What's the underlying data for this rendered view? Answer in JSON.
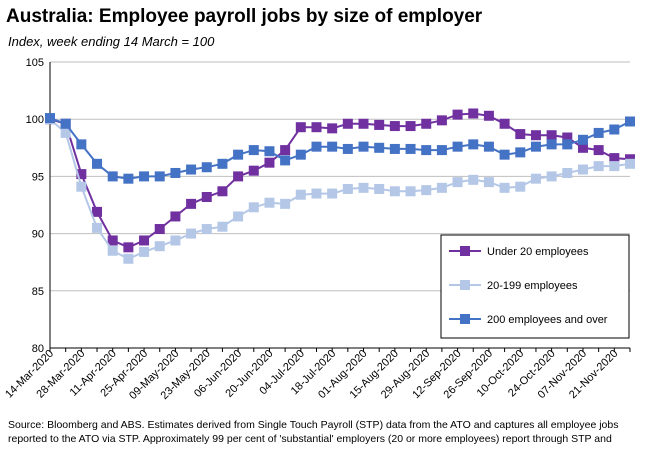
{
  "title": "Australia:  Employee payroll jobs by size of employer",
  "subtitle": "Index, week ending 14 March = 100",
  "source": "Source: Bloomberg and ABS.  Estimates derived from Single Touch Payroll (STP) data from the ATO and captures all employee jobs reported to the ATO via STP.  Approximately 99 per cent of 'substantial' employers (20 or more employees) report through STP and",
  "chart_data": {
    "type": "line",
    "title": "Australia:  Employee payroll jobs by size of employer",
    "subtitle": "Index, week ending 14 March = 100",
    "ylim": [
      80,
      105
    ],
    "yticks": [
      80,
      85,
      90,
      95,
      100,
      105
    ],
    "grid": "horizontal",
    "legend_position": "lower-right",
    "x": [
      "14-Mar-2020",
      "21-Mar-2020",
      "28-Mar-2020",
      "04-Apr-2020",
      "11-Apr-2020",
      "18-Apr-2020",
      "25-Apr-2020",
      "02-May-2020",
      "09-May-2020",
      "16-May-2020",
      "23-May-2020",
      "30-May-2020",
      "06-Jun-2020",
      "13-Jun-2020",
      "20-Jun-2020",
      "27-Jun-2020",
      "04-Jul-2020",
      "11-Jul-2020",
      "18-Jul-2020",
      "25-Jul-2020",
      "01-Aug-2020",
      "08-Aug-2020",
      "15-Aug-2020",
      "22-Aug-2020",
      "29-Aug-2020",
      "05-Sep-2020",
      "12-Sep-2020",
      "19-Sep-2020",
      "26-Sep-2020",
      "03-Oct-2020",
      "10-Oct-2020",
      "17-Oct-2020",
      "24-Oct-2020",
      "31-Oct-2020",
      "07-Nov-2020",
      "14-Nov-2020",
      "21-Nov-2020",
      "28-Nov-2020"
    ],
    "x_tick_labels": [
      "14-Mar-2020",
      "28-Mar-2020",
      "11-Apr-2020",
      "25-Apr-2020",
      "09-May-2020",
      "23-May-2020",
      "06-Jun-2020",
      "20-Jun-2020",
      "04-Jul-2020",
      "18-Jul-2020",
      "01-Aug-2020",
      "15-Aug-2020",
      "29-Aug-2020",
      "12-Sep-2020",
      "26-Sep-2020",
      "10-Oct-2020",
      "24-Oct-2020",
      "07-Nov-2020",
      "21-Nov-2020"
    ],
    "series": [
      {
        "name": "Under 20 employees",
        "color": "#7030A0",
        "values": [
          100.0,
          99.6,
          95.2,
          91.9,
          89.4,
          88.8,
          89.4,
          90.4,
          91.5,
          92.6,
          93.2,
          93.7,
          95.0,
          95.5,
          96.2,
          97.3,
          99.3,
          99.3,
          99.2,
          99.6,
          99.6,
          99.5,
          99.4,
          99.4,
          99.6,
          99.9,
          100.4,
          100.5,
          100.3,
          99.6,
          98.7,
          98.6,
          98.6,
          98.4,
          97.5,
          97.3,
          96.6,
          96.5
        ]
      },
      {
        "name": "20-199 employees",
        "color": "#B4C7E7",
        "values": [
          100.0,
          98.8,
          94.1,
          90.5,
          88.5,
          87.8,
          88.4,
          88.9,
          89.4,
          90.0,
          90.4,
          90.6,
          91.5,
          92.3,
          92.7,
          92.6,
          93.4,
          93.5,
          93.5,
          93.9,
          94.0,
          93.9,
          93.7,
          93.7,
          93.8,
          94.0,
          94.5,
          94.7,
          94.5,
          94.0,
          94.1,
          94.8,
          95.0,
          95.3,
          95.6,
          95.9,
          95.9,
          96.1
        ]
      },
      {
        "name": "200 employees and over",
        "color": "#4472C4",
        "values": [
          100.1,
          99.6,
          97.8,
          96.1,
          95.0,
          94.8,
          95.0,
          95.0,
          95.3,
          95.6,
          95.8,
          96.1,
          96.9,
          97.3,
          97.2,
          96.4,
          96.9,
          97.6,
          97.6,
          97.4,
          97.6,
          97.5,
          97.4,
          97.4,
          97.3,
          97.3,
          97.6,
          97.8,
          97.6,
          96.9,
          97.1,
          97.6,
          97.8,
          97.8,
          98.2,
          98.8,
          99.1,
          99.8
        ]
      }
    ]
  }
}
